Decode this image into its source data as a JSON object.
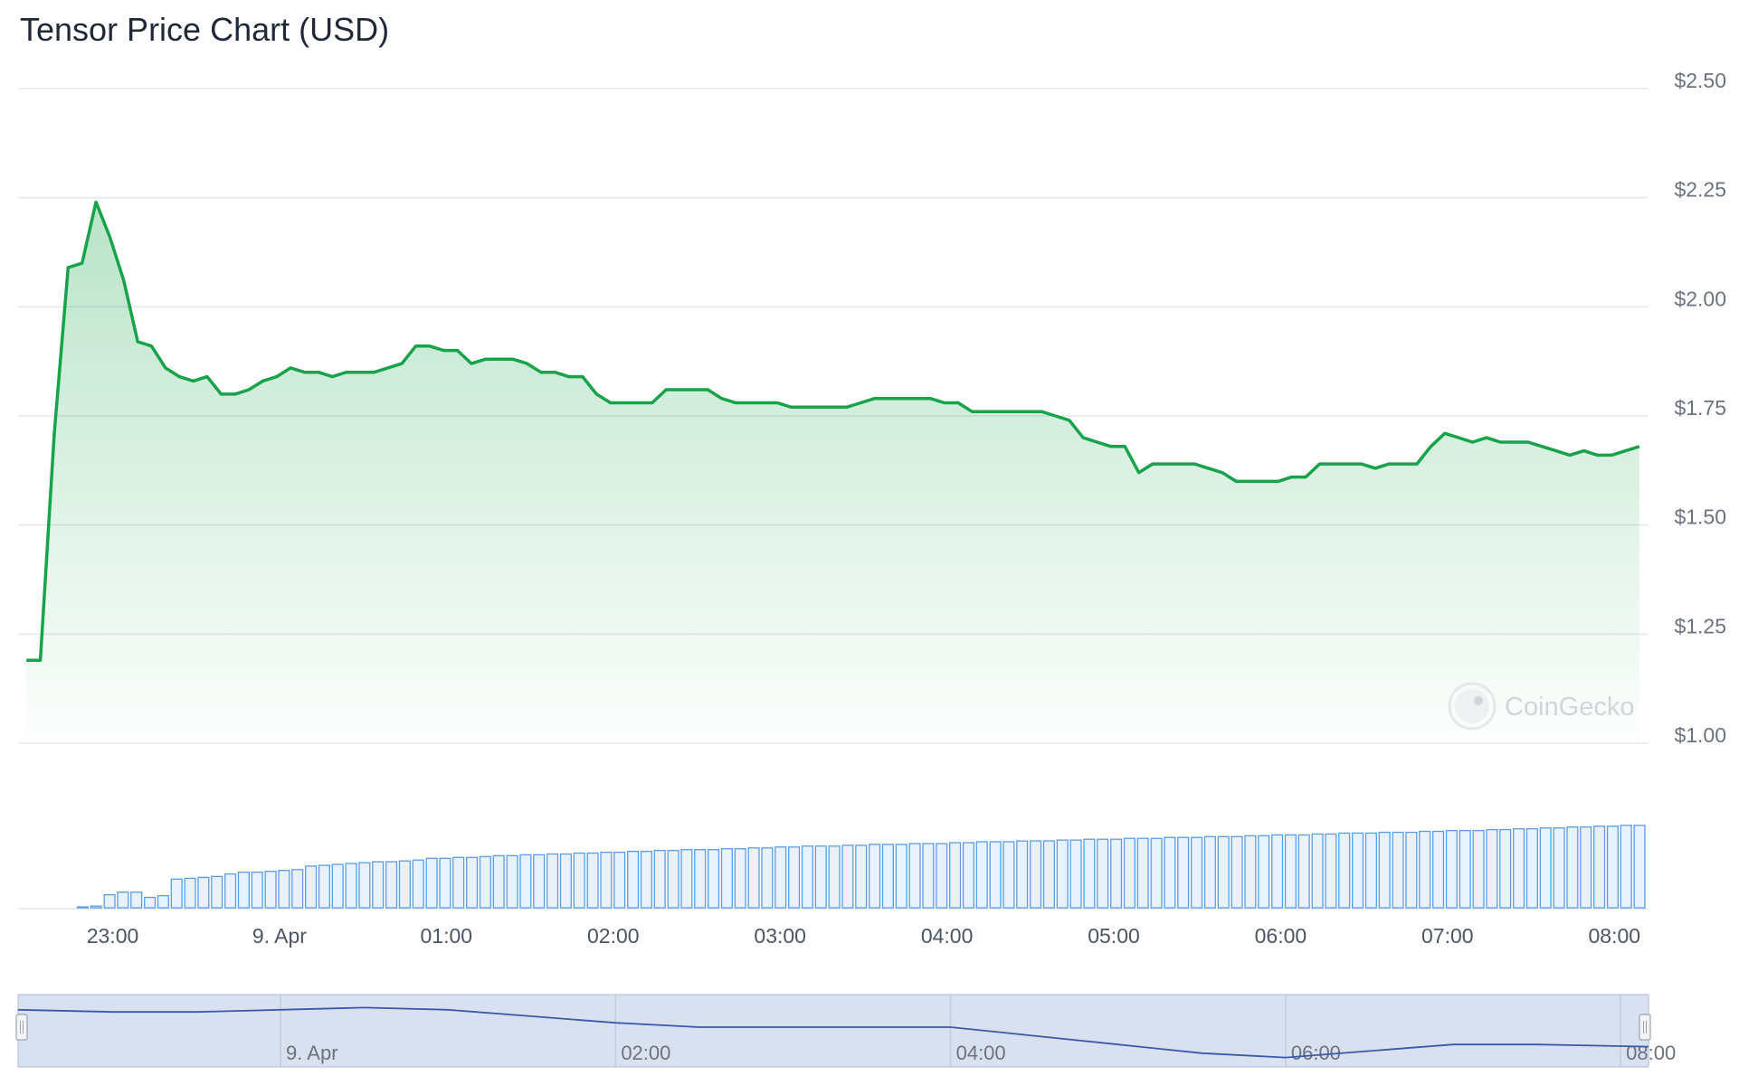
{
  "title": "Tensor Price Chart (USD)",
  "watermark": "CoinGecko",
  "colors": {
    "price_line": "#16a34a",
    "area_top": "#16a34a",
    "volume_bar_fill": "#e8f1fc",
    "volume_bar_stroke": "#5a9de6",
    "grid": "#e5e7eb",
    "navigator_fill": "#d7deef",
    "navigator_line": "#3b5ba9"
  },
  "chart_data": {
    "type": "area",
    "title": "Tensor Price Chart (USD)",
    "xlabel": "",
    "ylabel": "",
    "ylim": [
      1.0,
      2.5
    ],
    "yticks": [
      1.0,
      1.25,
      1.5,
      1.75,
      2.0,
      2.25,
      2.5
    ],
    "ytick_labels": [
      "$1.00",
      "$1.25",
      "$1.50",
      "$1.75",
      "$2.00",
      "$2.25",
      "$2.50"
    ],
    "xlim": [
      "2024-04-08T22:26",
      "2024-04-09T08:10"
    ],
    "xticks": [
      {
        "t": "2024-04-08T23:00",
        "label": "23:00"
      },
      {
        "t": "2024-04-09T00:00",
        "label": "9. Apr"
      },
      {
        "t": "2024-04-09T01:00",
        "label": "01:00"
      },
      {
        "t": "2024-04-09T02:00",
        "label": "02:00"
      },
      {
        "t": "2024-04-09T03:00",
        "label": "03:00"
      },
      {
        "t": "2024-04-09T04:00",
        "label": "04:00"
      },
      {
        "t": "2024-04-09T05:00",
        "label": "05:00"
      },
      {
        "t": "2024-04-09T06:00",
        "label": "06:00"
      },
      {
        "t": "2024-04-09T07:00",
        "label": "07:00"
      },
      {
        "t": "2024-04-09T08:00",
        "label": "08:00"
      }
    ],
    "series": [
      {
        "values": [
          [
            "2024-04-08T22:29",
            1.19
          ],
          [
            "2024-04-08T22:34",
            1.19
          ],
          [
            "2024-04-08T22:39",
            1.71
          ],
          [
            "2024-04-08T22:44",
            2.09
          ],
          [
            "2024-04-08T22:49",
            2.1
          ],
          [
            "2024-04-08T22:54",
            2.24
          ],
          [
            "2024-04-08T22:59",
            2.16
          ],
          [
            "2024-04-08T23:04",
            2.06
          ],
          [
            "2024-04-08T23:09",
            1.92
          ],
          [
            "2024-04-08T23:14",
            1.91
          ],
          [
            "2024-04-08T23:19",
            1.86
          ],
          [
            "2024-04-08T23:24",
            1.84
          ],
          [
            "2024-04-08T23:29",
            1.83
          ],
          [
            "2024-04-08T23:34",
            1.84
          ],
          [
            "2024-04-08T23:39",
            1.8
          ],
          [
            "2024-04-08T23:44",
            1.8
          ],
          [
            "2024-04-08T23:49",
            1.81
          ],
          [
            "2024-04-08T23:54",
            1.83
          ],
          [
            "2024-04-08T23:59",
            1.84
          ],
          [
            "2024-04-09T00:04",
            1.86
          ],
          [
            "2024-04-09T00:09",
            1.85
          ],
          [
            "2024-04-09T00:14",
            1.85
          ],
          [
            "2024-04-09T00:19",
            1.84
          ],
          [
            "2024-04-09T00:24",
            1.85
          ],
          [
            "2024-04-09T00:29",
            1.85
          ],
          [
            "2024-04-09T00:34",
            1.85
          ],
          [
            "2024-04-09T00:39",
            1.86
          ],
          [
            "2024-04-09T00:44",
            1.87
          ],
          [
            "2024-04-09T00:49",
            1.91
          ],
          [
            "2024-04-09T00:54",
            1.91
          ],
          [
            "2024-04-09T00:59",
            1.9
          ],
          [
            "2024-04-09T01:04",
            1.9
          ],
          [
            "2024-04-09T01:09",
            1.87
          ],
          [
            "2024-04-09T01:14",
            1.88
          ],
          [
            "2024-04-09T01:19",
            1.88
          ],
          [
            "2024-04-09T01:24",
            1.88
          ],
          [
            "2024-04-09T01:29",
            1.87
          ],
          [
            "2024-04-09T01:34",
            1.85
          ],
          [
            "2024-04-09T01:39",
            1.85
          ],
          [
            "2024-04-09T01:44",
            1.84
          ],
          [
            "2024-04-09T01:49",
            1.84
          ],
          [
            "2024-04-09T01:54",
            1.8
          ],
          [
            "2024-04-09T01:59",
            1.78
          ],
          [
            "2024-04-09T02:04",
            1.78
          ],
          [
            "2024-04-09T02:09",
            1.78
          ],
          [
            "2024-04-09T02:14",
            1.78
          ],
          [
            "2024-04-09T02:19",
            1.81
          ],
          [
            "2024-04-09T02:24",
            1.81
          ],
          [
            "2024-04-09T02:29",
            1.81
          ],
          [
            "2024-04-09T02:34",
            1.81
          ],
          [
            "2024-04-09T02:39",
            1.79
          ],
          [
            "2024-04-09T02:44",
            1.78
          ],
          [
            "2024-04-09T02:49",
            1.78
          ],
          [
            "2024-04-09T02:54",
            1.78
          ],
          [
            "2024-04-09T02:59",
            1.78
          ],
          [
            "2024-04-09T03:04",
            1.77
          ],
          [
            "2024-04-09T03:09",
            1.77
          ],
          [
            "2024-04-09T03:14",
            1.77
          ],
          [
            "2024-04-09T03:19",
            1.77
          ],
          [
            "2024-04-09T03:24",
            1.77
          ],
          [
            "2024-04-09T03:29",
            1.78
          ],
          [
            "2024-04-09T03:34",
            1.79
          ],
          [
            "2024-04-09T03:39",
            1.79
          ],
          [
            "2024-04-09T03:44",
            1.79
          ],
          [
            "2024-04-09T03:49",
            1.79
          ],
          [
            "2024-04-09T03:54",
            1.79
          ],
          [
            "2024-04-09T03:59",
            1.78
          ],
          [
            "2024-04-09T04:04",
            1.78
          ],
          [
            "2024-04-09T04:09",
            1.76
          ],
          [
            "2024-04-09T04:14",
            1.76
          ],
          [
            "2024-04-09T04:19",
            1.76
          ],
          [
            "2024-04-09T04:24",
            1.76
          ],
          [
            "2024-04-09T04:29",
            1.76
          ],
          [
            "2024-04-09T04:34",
            1.76
          ],
          [
            "2024-04-09T04:39",
            1.75
          ],
          [
            "2024-04-09T04:44",
            1.74
          ],
          [
            "2024-04-09T04:49",
            1.7
          ],
          [
            "2024-04-09T04:54",
            1.69
          ],
          [
            "2024-04-09T04:59",
            1.68
          ],
          [
            "2024-04-09T05:04",
            1.68
          ],
          [
            "2024-04-09T05:09",
            1.62
          ],
          [
            "2024-04-09T05:14",
            1.64
          ],
          [
            "2024-04-09T05:19",
            1.64
          ],
          [
            "2024-04-09T05:24",
            1.64
          ],
          [
            "2024-04-09T05:29",
            1.64
          ],
          [
            "2024-04-09T05:34",
            1.63
          ],
          [
            "2024-04-09T05:39",
            1.62
          ],
          [
            "2024-04-09T05:44",
            1.6
          ],
          [
            "2024-04-09T05:49",
            1.6
          ],
          [
            "2024-04-09T05:54",
            1.6
          ],
          [
            "2024-04-09T05:59",
            1.6
          ],
          [
            "2024-04-09T06:04",
            1.61
          ],
          [
            "2024-04-09T06:09",
            1.61
          ],
          [
            "2024-04-09T06:14",
            1.64
          ],
          [
            "2024-04-09T06:19",
            1.64
          ],
          [
            "2024-04-09T06:24",
            1.64
          ],
          [
            "2024-04-09T06:29",
            1.64
          ],
          [
            "2024-04-09T06:34",
            1.63
          ],
          [
            "2024-04-09T06:39",
            1.64
          ],
          [
            "2024-04-09T06:44",
            1.64
          ],
          [
            "2024-04-09T06:49",
            1.64
          ],
          [
            "2024-04-09T06:54",
            1.68
          ],
          [
            "2024-04-09T06:59",
            1.71
          ],
          [
            "2024-04-09T07:04",
            1.7
          ],
          [
            "2024-04-09T07:09",
            1.69
          ],
          [
            "2024-04-09T07:14",
            1.7
          ],
          [
            "2024-04-09T07:19",
            1.69
          ],
          [
            "2024-04-09T07:24",
            1.69
          ],
          [
            "2024-04-09T07:29",
            1.69
          ],
          [
            "2024-04-09T07:34",
            1.68
          ],
          [
            "2024-04-09T07:39",
            1.67
          ],
          [
            "2024-04-09T07:44",
            1.66
          ],
          [
            "2024-04-09T07:49",
            1.67
          ],
          [
            "2024-04-09T07:54",
            1.66
          ],
          [
            "2024-04-09T07:59",
            1.66
          ],
          [
            "2024-04-09T08:04",
            1.67
          ],
          [
            "2024-04-09T08:09",
            1.68
          ]
        ]
      }
    ],
    "volume": {
      "type": "bar",
      "scale": "relative",
      "max": 1.0,
      "values": [
        0.0,
        0.0,
        0.0,
        0.01,
        0.02,
        0.15,
        0.18,
        0.18,
        0.12,
        0.14,
        0.33,
        0.34,
        0.35,
        0.36,
        0.39,
        0.41,
        0.41,
        0.42,
        0.43,
        0.44,
        0.48,
        0.49,
        0.5,
        0.51,
        0.52,
        0.53,
        0.53,
        0.54,
        0.55,
        0.57,
        0.57,
        0.58,
        0.58,
        0.59,
        0.6,
        0.6,
        0.61,
        0.61,
        0.62,
        0.62,
        0.63,
        0.63,
        0.64,
        0.64,
        0.65,
        0.65,
        0.66,
        0.66,
        0.67,
        0.67,
        0.67,
        0.68,
        0.68,
        0.69,
        0.69,
        0.7,
        0.7,
        0.71,
        0.71,
        0.71,
        0.72,
        0.72,
        0.73,
        0.73,
        0.73,
        0.74,
        0.74,
        0.74,
        0.75,
        0.75,
        0.76,
        0.76,
        0.76,
        0.77,
        0.77,
        0.77,
        0.78,
        0.78,
        0.79,
        0.79,
        0.79,
        0.8,
        0.8,
        0.8,
        0.81,
        0.81,
        0.81,
        0.82,
        0.82,
        0.82,
        0.83,
        0.83,
        0.84,
        0.84,
        0.84,
        0.85,
        0.85,
        0.86,
        0.86,
        0.86,
        0.87,
        0.87,
        0.87,
        0.88,
        0.88,
        0.89,
        0.89,
        0.89,
        0.9,
        0.9,
        0.91,
        0.91,
        0.92,
        0.92,
        0.93,
        0.93,
        0.94,
        0.94,
        0.95,
        0.95
      ]
    },
    "navigator": {
      "labels": [
        {
          "t": "2024-04-09T00:00",
          "label": "9. Apr"
        },
        {
          "t": "2024-04-09T02:00",
          "label": "02:00"
        },
        {
          "t": "2024-04-09T04:00",
          "label": "04:00"
        },
        {
          "t": "2024-04-09T06:00",
          "label": "06:00"
        },
        {
          "t": "2024-04-09T08:00",
          "label": "08:00"
        }
      ],
      "values": [
        [
          "2024-04-08T22:26",
          1.86
        ],
        [
          "2024-04-08T23:00",
          1.85
        ],
        [
          "2024-04-08T23:30",
          1.85
        ],
        [
          "2024-04-09T00:00",
          1.86
        ],
        [
          "2024-04-09T00:30",
          1.87
        ],
        [
          "2024-04-09T01:00",
          1.86
        ],
        [
          "2024-04-09T01:30",
          1.83
        ],
        [
          "2024-04-09T02:00",
          1.8
        ],
        [
          "2024-04-09T02:30",
          1.78
        ],
        [
          "2024-04-09T03:00",
          1.78
        ],
        [
          "2024-04-09T03:30",
          1.78
        ],
        [
          "2024-04-09T04:00",
          1.78
        ],
        [
          "2024-04-09T04:30",
          1.74
        ],
        [
          "2024-04-09T05:00",
          1.7
        ],
        [
          "2024-04-09T05:30",
          1.66
        ],
        [
          "2024-04-09T06:00",
          1.64
        ],
        [
          "2024-04-09T06:30",
          1.67
        ],
        [
          "2024-04-09T07:00",
          1.7
        ],
        [
          "2024-04-09T07:30",
          1.7
        ],
        [
          "2024-04-09T08:10",
          1.69
        ]
      ]
    }
  }
}
